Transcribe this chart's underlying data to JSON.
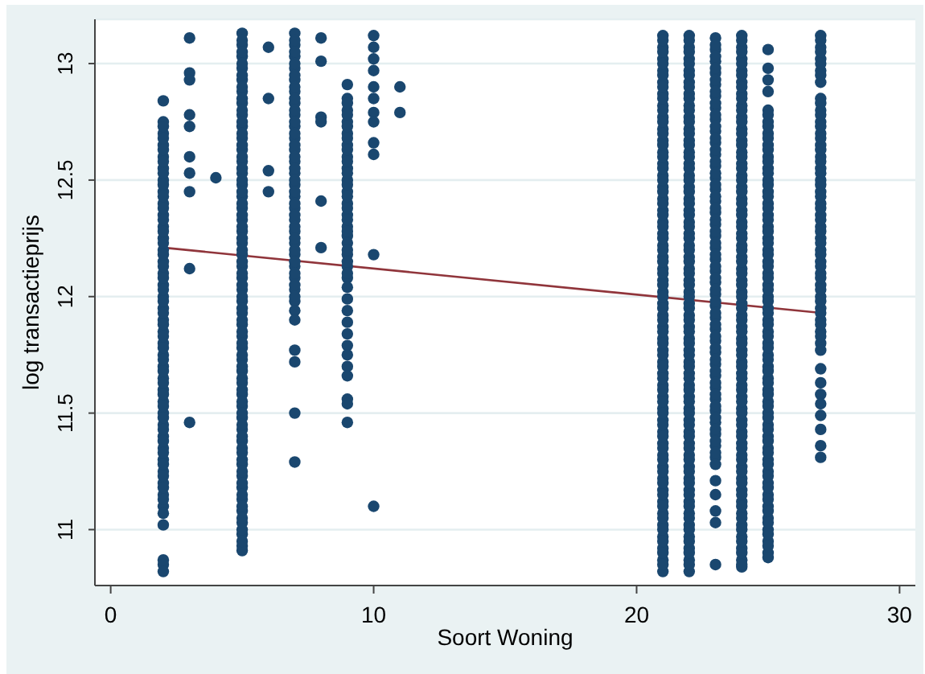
{
  "chart_data": {
    "type": "scatter",
    "xlabel": "Soort Woning",
    "ylabel": "log transactieprijs",
    "xlim": [
      -0.6,
      30.6
    ],
    "ylim": [
      10.76,
      13.19
    ],
    "xticks": [
      0,
      10,
      20,
      30
    ],
    "yticks": [
      11,
      11.5,
      12,
      12.5,
      13
    ],
    "grid": "y",
    "marker": "circle",
    "series": [
      {
        "color": "#1a476f",
        "x": [
          2,
          2,
          2,
          2,
          2,
          2,
          2,
          2,
          2,
          2,
          2,
          2,
          2,
          2,
          2,
          2,
          2,
          2,
          2,
          2,
          2,
          2,
          2,
          2,
          2,
          2,
          2,
          2,
          2,
          2,
          2,
          2,
          2,
          2,
          2,
          2,
          2,
          2,
          2,
          2,
          3,
          3,
          3,
          3,
          3,
          3,
          3,
          3,
          3,
          3,
          4,
          5,
          5,
          5,
          5,
          5,
          5,
          5,
          5,
          5,
          5,
          5,
          5,
          5,
          5,
          5,
          5,
          5,
          5,
          5,
          5,
          5,
          5,
          5,
          5,
          5,
          5,
          5,
          5,
          5,
          5,
          5,
          5,
          5,
          5,
          5,
          5,
          5,
          5,
          5,
          5,
          5,
          5,
          5,
          5,
          5,
          5,
          6,
          6,
          6,
          6,
          7,
          7,
          7,
          7,
          7,
          7,
          7,
          7,
          7,
          7,
          7,
          7,
          7,
          7,
          7,
          7,
          7,
          7,
          7,
          7,
          7,
          7,
          7,
          7,
          7,
          7,
          7,
          7,
          7,
          7,
          8,
          8,
          8,
          8,
          8,
          8,
          9,
          9,
          9,
          9,
          9,
          9,
          9,
          9,
          9,
          9,
          9,
          9,
          9,
          9,
          9,
          9,
          9,
          9,
          9,
          9,
          9,
          9,
          9,
          9,
          9,
          9,
          9,
          9,
          9,
          9,
          10,
          10,
          10,
          10,
          10,
          10,
          10,
          10,
          10,
          10,
          10,
          10,
          11,
          11,
          21,
          21,
          21,
          21,
          21,
          21,
          21,
          21,
          21,
          21,
          21,
          21,
          21,
          21,
          21,
          21,
          21,
          21,
          21,
          21,
          21,
          21,
          21,
          21,
          21,
          21,
          21,
          21,
          21,
          21,
          21,
          21,
          21,
          21,
          21,
          21,
          21,
          21,
          21,
          21,
          21,
          21,
          21,
          21,
          21,
          21,
          21,
          22,
          22,
          22,
          22,
          22,
          22,
          22,
          22,
          22,
          22,
          22,
          22,
          22,
          22,
          22,
          22,
          22,
          22,
          22,
          22,
          22,
          22,
          22,
          22,
          22,
          22,
          22,
          22,
          22,
          22,
          22,
          22,
          22,
          22,
          22,
          22,
          22,
          22,
          22,
          22,
          22,
          22,
          22,
          22,
          22,
          22,
          22,
          23,
          23,
          23,
          23,
          23,
          23,
          23,
          23,
          23,
          23,
          23,
          23,
          23,
          23,
          23,
          23,
          23,
          23,
          23,
          23,
          23,
          23,
          23,
          23,
          23,
          23,
          23,
          23,
          23,
          23,
          23,
          23,
          23,
          23,
          23,
          23,
          23,
          23,
          23,
          23,
          23,
          23,
          23,
          24,
          24,
          24,
          24,
          24,
          24,
          24,
          24,
          24,
          24,
          24,
          24,
          24,
          24,
          24,
          24,
          24,
          24,
          24,
          24,
          24,
          24,
          24,
          24,
          24,
          24,
          24,
          24,
          24,
          24,
          24,
          24,
          24,
          24,
          24,
          24,
          24,
          24,
          24,
          24,
          24,
          24,
          24,
          24,
          24,
          24,
          24,
          25,
          25,
          25,
          25,
          25,
          25,
          25,
          25,
          25,
          25,
          25,
          25,
          25,
          25,
          25,
          25,
          25,
          25,
          25,
          25,
          25,
          25,
          25,
          25,
          25,
          25,
          25,
          25,
          25,
          25,
          25,
          25,
          25,
          25,
          25,
          25,
          25,
          25,
          25,
          25,
          25,
          25,
          25,
          25,
          27,
          27,
          27,
          27,
          27,
          27,
          27,
          27,
          27,
          27,
          27,
          27,
          27,
          27,
          27,
          27,
          27,
          27,
          27,
          27,
          27,
          27,
          27,
          27,
          27,
          27,
          27,
          27,
          27,
          27,
          27,
          27,
          27,
          27,
          27,
          27,
          2,
          2,
          2,
          2,
          2,
          2,
          2,
          2,
          2,
          2,
          2,
          2,
          2,
          2,
          2,
          2,
          2,
          2,
          2,
          2,
          2,
          2,
          2,
          2,
          2,
          2,
          2,
          2,
          2,
          2,
          2,
          2,
          2,
          5,
          5,
          5,
          5,
          5,
          5,
          5,
          5,
          5,
          5,
          5,
          5,
          5,
          5,
          5,
          5,
          5,
          5,
          5,
          5,
          5,
          5,
          5,
          5,
          5,
          5,
          5,
          5,
          5,
          5,
          5,
          5,
          5,
          5,
          5,
          5,
          5,
          5,
          5,
          5,
          5,
          5,
          5,
          5,
          7,
          7,
          7,
          7,
          7,
          7,
          7,
          7,
          7,
          7,
          7,
          7,
          7,
          7,
          7,
          7,
          7,
          7,
          7,
          7,
          7,
          7,
          7,
          9,
          9,
          9,
          9,
          9,
          9,
          9,
          9,
          9,
          9,
          9,
          9,
          9,
          9,
          9,
          21,
          21,
          21,
          21,
          21,
          21,
          21,
          21,
          21,
          21,
          21,
          21,
          21,
          21,
          21,
          21,
          21,
          21,
          21,
          21,
          21,
          21,
          21,
          21,
          21,
          21,
          21,
          21,
          21,
          21,
          21,
          21,
          21,
          21,
          21,
          21,
          21,
          21,
          21,
          21,
          21,
          21,
          21,
          21,
          21,
          21,
          22,
          22,
          22,
          22,
          22,
          22,
          22,
          22,
          22,
          22,
          22,
          22,
          22,
          22,
          22,
          22,
          22,
          22,
          22,
          22,
          22,
          22,
          22,
          22,
          22,
          22,
          22,
          22,
          22,
          22,
          22,
          22,
          22,
          22,
          22,
          22,
          22,
          22,
          22,
          22,
          22,
          22,
          22,
          22,
          22,
          22,
          23,
          23,
          23,
          23,
          23,
          23,
          23,
          23,
          23,
          23,
          23,
          23,
          23,
          23,
          23,
          23,
          23,
          23,
          23,
          23,
          23,
          23,
          23,
          23,
          23,
          23,
          23,
          23,
          23,
          23,
          23,
          23,
          23,
          23,
          23,
          23,
          24,
          24,
          24,
          24,
          24,
          24,
          24,
          24,
          24,
          24,
          24,
          24,
          24,
          24,
          24,
          24,
          24,
          24,
          24,
          24,
          24,
          24,
          24,
          24,
          24,
          24,
          24,
          24,
          24,
          24,
          24,
          24,
          24,
          24,
          24,
          24,
          24,
          24,
          24,
          24,
          24,
          24,
          24,
          24,
          24,
          24,
          25,
          25,
          25,
          25,
          25,
          25,
          25,
          25,
          25,
          25,
          25,
          25,
          25,
          25,
          25,
          25,
          25,
          25,
          25,
          25,
          25,
          25,
          25,
          25,
          25,
          25,
          25,
          25,
          25,
          25,
          25,
          25,
          25,
          25,
          25,
          25,
          25,
          25,
          27,
          27,
          27,
          27,
          27,
          27,
          27,
          27,
          27,
          27,
          27,
          27,
          27,
          27,
          27,
          27,
          27,
          27,
          27,
          27,
          27,
          27,
          27,
          27,
          27
        ],
        "values": [
          12.84,
          12.75,
          12.7,
          12.65,
          12.6,
          12.55,
          12.5,
          12.45,
          12.4,
          12.35,
          12.3,
          12.25,
          12.2,
          12.15,
          12.1,
          12.05,
          12,
          11.95,
          11.9,
          11.85,
          11.8,
          11.75,
          11.7,
          11.65,
          11.6,
          11.55,
          11.5,
          11.45,
          11.4,
          11.35,
          11.3,
          11.25,
          11.2,
          11.15,
          11.1,
          11.07,
          11.02,
          10.87,
          10.85,
          10.82,
          13.11,
          12.96,
          12.93,
          12.78,
          12.73,
          12.6,
          12.53,
          12.45,
          12.12,
          11.46,
          12.51,
          13.13,
          13.08,
          13.03,
          12.98,
          12.93,
          12.88,
          12.83,
          12.78,
          12.73,
          12.68,
          12.63,
          12.58,
          12.53,
          12.48,
          12.43,
          12.38,
          12.33,
          12.28,
          12.23,
          12.18,
          12.13,
          12.08,
          12.03,
          11.98,
          11.93,
          11.88,
          11.83,
          11.78,
          11.73,
          11.68,
          11.63,
          11.58,
          11.53,
          11.48,
          11.43,
          11.38,
          11.33,
          11.28,
          11.23,
          11.18,
          11.13,
          11.08,
          11.03,
          10.98,
          10.93,
          10.91,
          13.07,
          12.85,
          12.54,
          12.45,
          13.13,
          13.08,
          13.03,
          12.98,
          12.93,
          12.88,
          12.83,
          12.78,
          12.73,
          12.68,
          12.63,
          12.58,
          12.53,
          12.48,
          12.43,
          12.38,
          12.33,
          12.28,
          12.23,
          12.18,
          12.13,
          12.08,
          12.03,
          11.98,
          11.94,
          11.9,
          11.77,
          11.72,
          11.5,
          11.29,
          13.11,
          13.01,
          12.77,
          12.75,
          12.41,
          12.21,
          12.91,
          12.85,
          12.8,
          12.75,
          12.7,
          12.65,
          12.6,
          12.55,
          12.5,
          12.45,
          12.4,
          12.35,
          12.3,
          12.26,
          12.23,
          12.18,
          12.13,
          12.08,
          12.04,
          11.99,
          11.94,
          11.89,
          11.84,
          11.79,
          11.75,
          11.7,
          11.66,
          11.56,
          11.54,
          11.46,
          13.12,
          13.07,
          13.02,
          12.97,
          12.9,
          12.85,
          12.79,
          12.75,
          12.66,
          12.61,
          12.18,
          11.1,
          12.9,
          12.79,
          13.12,
          13.07,
          13.02,
          12.97,
          12.92,
          12.87,
          12.82,
          12.77,
          12.72,
          12.67,
          12.62,
          12.57,
          12.52,
          12.47,
          12.42,
          12.37,
          12.32,
          12.27,
          12.22,
          12.17,
          12.12,
          12.07,
          12.02,
          11.97,
          11.92,
          11.87,
          11.82,
          11.77,
          11.72,
          11.67,
          11.62,
          11.57,
          11.52,
          11.47,
          11.42,
          11.37,
          11.32,
          11.27,
          11.22,
          11.17,
          11.12,
          11.07,
          11.02,
          10.97,
          10.92,
          10.87,
          10.82,
          13.12,
          13.07,
          13.02,
          12.97,
          12.92,
          12.87,
          12.82,
          12.77,
          12.72,
          12.67,
          12.62,
          12.57,
          12.52,
          12.47,
          12.42,
          12.37,
          12.32,
          12.27,
          12.22,
          12.17,
          12.12,
          12.07,
          12.02,
          11.97,
          11.92,
          11.87,
          11.82,
          11.77,
          11.72,
          11.67,
          11.62,
          11.57,
          11.52,
          11.47,
          11.42,
          11.37,
          11.32,
          11.27,
          11.22,
          11.17,
          11.12,
          11.07,
          11.02,
          10.97,
          10.92,
          10.87,
          10.82,
          13.11,
          13.06,
          13.01,
          12.96,
          12.91,
          12.86,
          12.81,
          12.76,
          12.71,
          12.66,
          12.61,
          12.56,
          12.51,
          12.46,
          12.41,
          12.36,
          12.31,
          12.26,
          12.21,
          12.16,
          12.11,
          12.06,
          12.01,
          11.96,
          11.91,
          11.86,
          11.81,
          11.76,
          11.71,
          11.66,
          11.61,
          11.56,
          11.51,
          11.46,
          11.41,
          11.36,
          11.31,
          11.28,
          11.21,
          11.15,
          11.08,
          11.03,
          10.85,
          13.12,
          13.07,
          13.02,
          12.97,
          12.92,
          12.87,
          12.82,
          12.77,
          12.72,
          12.67,
          12.62,
          12.57,
          12.52,
          12.47,
          12.42,
          12.37,
          12.32,
          12.27,
          12.22,
          12.17,
          12.12,
          12.07,
          12.02,
          11.97,
          11.92,
          11.87,
          11.82,
          11.77,
          11.72,
          11.67,
          11.62,
          11.57,
          11.52,
          11.47,
          11.42,
          11.37,
          11.32,
          11.27,
          11.22,
          11.17,
          11.12,
          11.07,
          11.02,
          10.97,
          10.92,
          10.87,
          10.84,
          13.06,
          12.98,
          12.93,
          12.88,
          12.8,
          12.75,
          12.7,
          12.65,
          12.6,
          12.55,
          12.5,
          12.45,
          12.4,
          12.35,
          12.3,
          12.25,
          12.2,
          12.15,
          12.1,
          12.05,
          12,
          11.95,
          11.9,
          11.85,
          11.8,
          11.75,
          11.7,
          11.65,
          11.6,
          11.55,
          11.5,
          11.45,
          11.4,
          11.35,
          11.3,
          11.25,
          11.2,
          11.15,
          11.1,
          11.05,
          11,
          10.95,
          10.9,
          10.88,
          13.12,
          13.07,
          13.02,
          12.97,
          12.92,
          12.85,
          12.8,
          12.75,
          12.7,
          12.65,
          12.6,
          12.55,
          12.5,
          12.45,
          12.4,
          12.35,
          12.3,
          12.25,
          12.2,
          12.15,
          12.1,
          12.05,
          12,
          11.95,
          11.9,
          11.85,
          11.8,
          11.77,
          11.69,
          11.63,
          11.58,
          11.54,
          11.49,
          11.43,
          11.36,
          11.31,
          12.73,
          12.68,
          12.63,
          12.58,
          12.53,
          12.48,
          12.43,
          12.38,
          12.33,
          12.28,
          12.23,
          12.18,
          12.13,
          12.08,
          12.03,
          11.98,
          11.93,
          11.88,
          11.83,
          11.78,
          11.73,
          11.68,
          11.63,
          11.58,
          11.53,
          11.48,
          11.43,
          11.38,
          11.33,
          11.28,
          11.23,
          11.18,
          11.13,
          13.1,
          13.05,
          13,
          12.95,
          12.9,
          12.85,
          12.8,
          12.75,
          12.7,
          12.65,
          12.6,
          12.55,
          12.5,
          12.45,
          12.4,
          12.35,
          12.3,
          12.25,
          12.2,
          12.15,
          12.1,
          12.05,
          12,
          11.95,
          11.9,
          11.85,
          11.8,
          11.75,
          11.7,
          11.65,
          11.6,
          11.55,
          11.5,
          11.45,
          11.4,
          11.35,
          11.3,
          11.25,
          11.2,
          11.15,
          11.1,
          11.05,
          11,
          10.95,
          13.1,
          13.05,
          13,
          12.95,
          12.9,
          12.85,
          12.8,
          12.75,
          12.7,
          12.65,
          12.6,
          12.55,
          12.5,
          12.45,
          12.4,
          12.35,
          12.3,
          12.25,
          12.2,
          12.15,
          12.1,
          12.05,
          12,
          12.83,
          12.78,
          12.73,
          12.68,
          12.63,
          12.58,
          12.53,
          12.48,
          12.43,
          12.38,
          12.33,
          12.28,
          12.2,
          12.15,
          12.1,
          13.1,
          13.05,
          13,
          12.95,
          12.9,
          12.85,
          12.8,
          12.75,
          12.7,
          12.65,
          12.6,
          12.55,
          12.5,
          12.45,
          12.4,
          12.35,
          12.3,
          12.25,
          12.2,
          12.15,
          12.1,
          12.05,
          12,
          11.95,
          11.9,
          11.85,
          11.8,
          11.75,
          11.7,
          11.65,
          11.6,
          11.55,
          11.5,
          11.45,
          11.4,
          11.35,
          11.3,
          11.25,
          11.2,
          11.15,
          11.1,
          11.05,
          11,
          10.95,
          10.9,
          10.85,
          13.1,
          13.05,
          13,
          12.95,
          12.9,
          12.85,
          12.8,
          12.75,
          12.7,
          12.65,
          12.6,
          12.55,
          12.5,
          12.45,
          12.4,
          12.35,
          12.3,
          12.25,
          12.2,
          12.15,
          12.1,
          12.05,
          12,
          11.95,
          11.9,
          11.85,
          11.8,
          11.75,
          11.7,
          11.65,
          11.6,
          11.55,
          11.5,
          11.45,
          11.4,
          11.35,
          11.3,
          11.25,
          11.2,
          11.15,
          11.1,
          11.05,
          11,
          10.95,
          10.9,
          10.85,
          13.08,
          13.03,
          12.98,
          12.93,
          12.88,
          12.83,
          12.78,
          12.73,
          12.68,
          12.63,
          12.58,
          12.53,
          12.48,
          12.43,
          12.38,
          12.33,
          12.28,
          12.23,
          12.18,
          12.13,
          12.08,
          12.03,
          11.98,
          11.93,
          11.88,
          11.83,
          11.78,
          11.73,
          11.68,
          11.63,
          11.58,
          11.53,
          11.48,
          11.43,
          11.38,
          11.33,
          13.1,
          13.05,
          13,
          12.95,
          12.9,
          12.85,
          12.8,
          12.75,
          12.7,
          12.65,
          12.6,
          12.55,
          12.5,
          12.45,
          12.4,
          12.35,
          12.3,
          12.25,
          12.2,
          12.15,
          12.1,
          12.05,
          12,
          11.95,
          11.9,
          11.85,
          11.8,
          11.75,
          11.7,
          11.65,
          11.6,
          11.55,
          11.5,
          11.45,
          11.4,
          11.35,
          11.3,
          11.25,
          11.2,
          11.15,
          11.1,
          11.05,
          11,
          10.95,
          10.9,
          10.85,
          12.78,
          12.73,
          12.68,
          12.63,
          12.58,
          12.53,
          12.48,
          12.43,
          12.38,
          12.33,
          12.28,
          12.23,
          12.18,
          12.13,
          12.08,
          12.03,
          11.98,
          11.93,
          11.88,
          11.83,
          11.78,
          11.73,
          11.68,
          11.63,
          11.58,
          11.53,
          11.48,
          11.43,
          11.38,
          11.33,
          11.28,
          11.23,
          11.18,
          11.13,
          11.08,
          11.03,
          10.98,
          10.93,
          13.1,
          13.05,
          13,
          12.95,
          12.83,
          12.78,
          12.73,
          12.68,
          12.63,
          12.58,
          12.53,
          12.48,
          12.43,
          12.38,
          12.33,
          12.28,
          12.23,
          12.18,
          12.13,
          12.08,
          12.03,
          11.98,
          11.93,
          11.88,
          11.83
        ]
      },
      {
        "type": "line",
        "color": "#90353b",
        "marker": "none",
        "x": [
          2,
          27
        ],
        "values": [
          12.21,
          11.93
        ]
      }
    ]
  }
}
